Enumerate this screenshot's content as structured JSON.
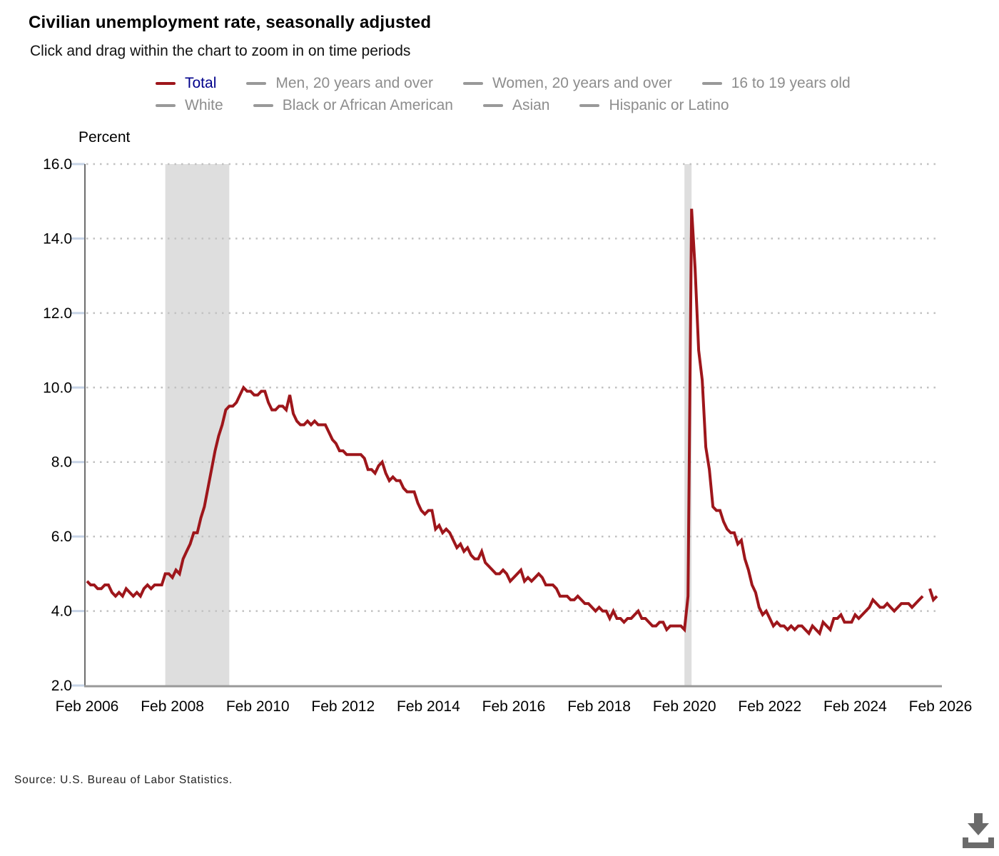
{
  "header": {
    "title": "Civilian unemployment rate, seasonally adjusted",
    "subtitle": "Click and drag within the chart to zoom in on time periods"
  },
  "legend": {
    "items": [
      {
        "label": "Total",
        "swatch_color": "#9e161b",
        "label_color": "#00008b",
        "active": true
      },
      {
        "label": "Men, 20 years and over",
        "swatch_color": "#999999",
        "label_color": "#8d8d8d",
        "active": false
      },
      {
        "label": "Women, 20 years and over",
        "swatch_color": "#999999",
        "label_color": "#8d8d8d",
        "active": false
      },
      {
        "label": "16 to 19 years old",
        "swatch_color": "#999999",
        "label_color": "#8d8d8d",
        "active": false
      },
      {
        "label": "White",
        "swatch_color": "#999999",
        "label_color": "#8d8d8d",
        "active": false
      },
      {
        "label": "Black or African American",
        "swatch_color": "#999999",
        "label_color": "#8d8d8d",
        "active": false
      },
      {
        "label": "Asian",
        "swatch_color": "#999999",
        "label_color": "#8d8d8d",
        "active": false
      },
      {
        "label": "Hispanic or Latino",
        "swatch_color": "#999999",
        "label_color": "#8d8d8d",
        "active": false
      }
    ]
  },
  "chart_data": {
    "type": "line",
    "title": "Civilian unemployment rate, seasonally adjusted",
    "ylabel": "Percent",
    "xlabel": "",
    "ylim": [
      2.0,
      16.0
    ],
    "grid": "horizontal-dotted",
    "legend_position": "top",
    "yticks": [
      "16.0",
      "14.0",
      "12.0",
      "10.0",
      "8.0",
      "6.0",
      "4.0",
      "2.0"
    ],
    "ytick_values": [
      16,
      14,
      12,
      10,
      8,
      6,
      4,
      2
    ],
    "xticks": [
      "Feb 2006",
      "Feb 2008",
      "Feb 2010",
      "Feb 2012",
      "Feb 2014",
      "Feb 2016",
      "Feb 2018",
      "Feb 2020",
      "Feb 2022",
      "Feb 2024",
      "Feb 2026"
    ],
    "x_start": "Feb 2006",
    "x_end": "Jan 2026",
    "frequency": "monthly",
    "note": "null value = data gap (Oct 2025)",
    "recession_bands": [
      {
        "from_month_index": 22,
        "to_month_index": 40,
        "from": "Dec 2007",
        "to": "Jun 2009"
      },
      {
        "from_month_index": 168,
        "to_month_index": 170,
        "from": "Feb 2020",
        "to": "Apr 2020"
      }
    ],
    "series": [
      {
        "name": "Total",
        "color": "#9e161b",
        "values": [
          4.8,
          4.7,
          4.7,
          4.6,
          4.6,
          4.7,
          4.7,
          4.5,
          4.4,
          4.5,
          4.4,
          4.6,
          4.5,
          4.4,
          4.5,
          4.4,
          4.6,
          4.7,
          4.6,
          4.7,
          4.7,
          4.7,
          5.0,
          5.0,
          4.9,
          5.1,
          5.0,
          5.4,
          5.6,
          5.8,
          6.1,
          6.1,
          6.5,
          6.8,
          7.3,
          7.8,
          8.3,
          8.7,
          9.0,
          9.4,
          9.5,
          9.5,
          9.6,
          9.8,
          10.0,
          9.9,
          9.9,
          9.8,
          9.8,
          9.9,
          9.9,
          9.6,
          9.4,
          9.4,
          9.5,
          9.5,
          9.4,
          9.8,
          9.3,
          9.1,
          9.0,
          9.0,
          9.1,
          9.0,
          9.1,
          9.0,
          9.0,
          9.0,
          8.8,
          8.6,
          8.5,
          8.3,
          8.3,
          8.2,
          8.2,
          8.2,
          8.2,
          8.2,
          8.1,
          7.8,
          7.8,
          7.7,
          7.9,
          8.0,
          7.7,
          7.5,
          7.6,
          7.5,
          7.5,
          7.3,
          7.2,
          7.2,
          7.2,
          6.9,
          6.7,
          6.6,
          6.7,
          6.7,
          6.2,
          6.3,
          6.1,
          6.2,
          6.1,
          5.9,
          5.7,
          5.8,
          5.6,
          5.7,
          5.5,
          5.4,
          5.4,
          5.6,
          5.3,
          5.2,
          5.1,
          5.0,
          5.0,
          5.1,
          5.0,
          4.8,
          4.9,
          5.0,
          5.1,
          4.8,
          4.9,
          4.8,
          4.9,
          5.0,
          4.9,
          4.7,
          4.7,
          4.7,
          4.6,
          4.4,
          4.4,
          4.4,
          4.3,
          4.3,
          4.4,
          4.3,
          4.2,
          4.2,
          4.1,
          4.0,
          4.1,
          4.0,
          4.0,
          3.8,
          4.0,
          3.8,
          3.8,
          3.7,
          3.8,
          3.8,
          3.9,
          4.0,
          3.8,
          3.8,
          3.7,
          3.6,
          3.6,
          3.7,
          3.7,
          3.5,
          3.6,
          3.6,
          3.6,
          3.6,
          3.5,
          4.4,
          14.8,
          13.2,
          11.0,
          10.2,
          8.4,
          7.8,
          6.8,
          6.7,
          6.7,
          6.4,
          6.2,
          6.1,
          6.1,
          5.8,
          5.9,
          5.4,
          5.1,
          4.7,
          4.5,
          4.1,
          3.9,
          4.0,
          3.8,
          3.6,
          3.7,
          3.6,
          3.6,
          3.5,
          3.6,
          3.5,
          3.6,
          3.6,
          3.5,
          3.4,
          3.6,
          3.5,
          3.4,
          3.7,
          3.6,
          3.5,
          3.8,
          3.8,
          3.9,
          3.7,
          3.7,
          3.7,
          3.9,
          3.8,
          3.9,
          4.0,
          4.1,
          4.3,
          4.2,
          4.1,
          4.1,
          4.2,
          4.1,
          4.0,
          4.1,
          4.2,
          4.2,
          4.2,
          4.1,
          4.2,
          4.3,
          4.4,
          null,
          4.6,
          4.3,
          4.4
        ]
      }
    ],
    "colors": {
      "line": "#9e161b",
      "recession_band": "#dedede",
      "gridline": "#c2c2c2",
      "y_axis": "#6e6e6e",
      "x_axis": "#999999",
      "axis_tick": "#c6d3e6"
    }
  },
  "footer": {
    "source_text": "Source: U.S. Bureau of Labor Statistics."
  },
  "download": {
    "label": "Download chart",
    "icon_color": "#6b6b6b"
  }
}
